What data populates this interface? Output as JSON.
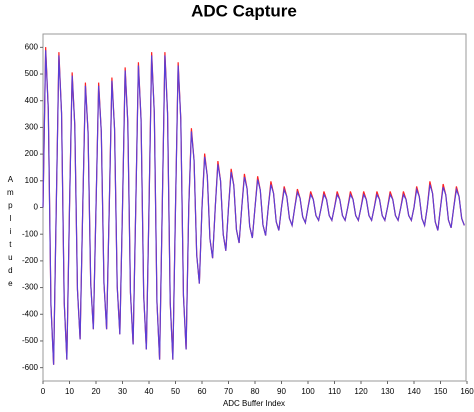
{
  "chart_data": {
    "type": "line",
    "title": "ADC Capture",
    "x_label": "ADC Buffer Index",
    "y_label": "Amplitude",
    "x": [
      0,
      1,
      2,
      3,
      4,
      5,
      6,
      7,
      8,
      9,
      10,
      11,
      12,
      13,
      14,
      15,
      16,
      17,
      18,
      19,
      20,
      21,
      22,
      23,
      24,
      25,
      26,
      27,
      28,
      29,
      30,
      31,
      32,
      33,
      34,
      35,
      36,
      37,
      38,
      39,
      40,
      41,
      42,
      43,
      44,
      45,
      46,
      47,
      48,
      49,
      50,
      51,
      52,
      53,
      54,
      55,
      56,
      57,
      58,
      59,
      60,
      61,
      62,
      63,
      64,
      65,
      66,
      67,
      68,
      69,
      70,
      71,
      72,
      73,
      74,
      75,
      76,
      77,
      78,
      79,
      80,
      81,
      82,
      83,
      84,
      85,
      86,
      87,
      88,
      89,
      90,
      91,
      92,
      93,
      94,
      95,
      96,
      97,
      98,
      99,
      100,
      101,
      102,
      103,
      104,
      105,
      106,
      107,
      108,
      109,
      110,
      111,
      112,
      113,
      114,
      115,
      116,
      117,
      118,
      119,
      120,
      121,
      122,
      123,
      124,
      125,
      126,
      127,
      128,
      129,
      130,
      131,
      132,
      133,
      134,
      135,
      136,
      137,
      138,
      139,
      140,
      141,
      142,
      143,
      144,
      145,
      146,
      147,
      148,
      149,
      150,
      151,
      152,
      153,
      154,
      155,
      156,
      157,
      158,
      159
    ],
    "series": [
      {
        "color": "#ff2020",
        "values": [
          0,
          601,
          366,
          -366,
          -589,
          0,
          582,
          354,
          -354,
          -570,
          0,
          506,
          307,
          -307,
          -494,
          0,
          468,
          283,
          -283,
          -456,
          0,
          468,
          283,
          -283,
          -456,
          0,
          487,
          295,
          -295,
          -475,
          0,
          525,
          319,
          -319,
          -513,
          0,
          544,
          330,
          -330,
          -532,
          0,
          582,
          354,
          -354,
          -570,
          0,
          582,
          354,
          -354,
          -570,
          0,
          544,
          330,
          -330,
          -532,
          0,
          297,
          177,
          -177,
          -285,
          0,
          202,
          118,
          -118,
          -190,
          0,
          174,
          100,
          -100,
          -162,
          0,
          145,
          83,
          -83,
          -133,
          0,
          126,
          71,
          -71,
          -114,
          0,
          117,
          65,
          -65,
          -105,
          0,
          98,
          53,
          -53,
          -86,
          0,
          79,
          41,
          -41,
          -67,
          0,
          69,
          35,
          -35,
          -57,
          0,
          60,
          30,
          -30,
          -48,
          0,
          60,
          30,
          -30,
          -48,
          0,
          60,
          30,
          -30,
          -48,
          0,
          60,
          30,
          -30,
          -48,
          0,
          60,
          30,
          -30,
          -48,
          0,
          60,
          30,
          -30,
          -48,
          0,
          60,
          30,
          -30,
          -48,
          0,
          60,
          30,
          -30,
          -48,
          0,
          79,
          41,
          -41,
          -67,
          0,
          98,
          53,
          -53,
          -86,
          0,
          88,
          47,
          -47,
          -76,
          0,
          79,
          41,
          -41,
          -67
        ]
      },
      {
        "color": "#5b3fd6",
        "values": [
          0,
          589,
          366,
          -366,
          -589,
          0,
          570,
          354,
          -354,
          -570,
          0,
          494,
          307,
          -307,
          -494,
          0,
          456,
          283,
          -283,
          -456,
          0,
          456,
          283,
          -283,
          -456,
          0,
          475,
          295,
          -295,
          -475,
          0,
          513,
          319,
          -319,
          -513,
          0,
          532,
          330,
          -330,
          -532,
          0,
          570,
          354,
          -354,
          -570,
          0,
          570,
          354,
          -354,
          -570,
          0,
          532,
          330,
          -330,
          -532,
          0,
          285,
          177,
          -177,
          -285,
          0,
          190,
          118,
          -118,
          -190,
          0,
          162,
          100,
          -100,
          -162,
          0,
          133,
          83,
          -83,
          -133,
          0,
          114,
          71,
          -71,
          -114,
          0,
          105,
          65,
          -65,
          -105,
          0,
          86,
          53,
          -53,
          -86,
          0,
          67,
          41,
          -41,
          -67,
          0,
          57,
          35,
          -35,
          -57,
          0,
          48,
          30,
          -30,
          -48,
          0,
          48,
          30,
          -30,
          -48,
          0,
          48,
          30,
          -30,
          -48,
          0,
          48,
          30,
          -30,
          -48,
          0,
          48,
          30,
          -30,
          -48,
          0,
          48,
          30,
          -30,
          -48,
          0,
          48,
          30,
          -30,
          -48,
          0,
          48,
          30,
          -30,
          -48,
          0,
          67,
          41,
          -41,
          -67,
          0,
          86,
          53,
          -53,
          -86,
          0,
          76,
          47,
          -47,
          -76,
          0,
          67,
          41,
          -41,
          -67
        ]
      }
    ],
    "xlim": [
      0,
      160
    ],
    "xticks": [
      0,
      10,
      20,
      30,
      40,
      50,
      60,
      70,
      80,
      90,
      100,
      110,
      120,
      130,
      140,
      150,
      160
    ],
    "ylim": [
      -650,
      650
    ],
    "yticks": [
      -600,
      -500,
      -400,
      -300,
      -200,
      -100,
      0,
      100,
      200,
      300,
      400,
      500,
      600
    ]
  }
}
